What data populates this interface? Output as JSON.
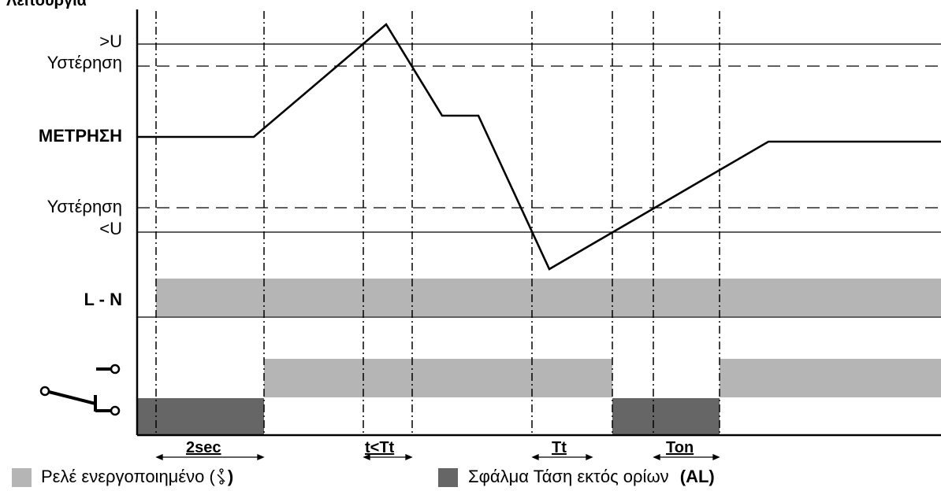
{
  "title": "Λειτουργία",
  "labels": {
    "over_voltage": ">U",
    "hysteresis_top": "Υστέρηση",
    "measurement": "ΜΕΤΡΗΣΗ",
    "hysteresis_bottom": "Υστέρηση",
    "under_voltage": "<U",
    "ln": "L - N"
  },
  "timing": {
    "t1": "2sec",
    "t2": "t<Tt",
    "t3": "Tt",
    "t4": "Ton"
  },
  "legend": {
    "relay_on": "Ρελέ ενεργοποιημένο (",
    "relay_on_close": ")",
    "relay_on_symbol": "relay-contact-icon",
    "fault": "Σφάλμα Τάση εκτός ορίων",
    "fault_code": "(AL)"
  },
  "colors": {
    "relay_active": "#b5b5b5",
    "fault": "#666666",
    "line": "#000000"
  }
}
